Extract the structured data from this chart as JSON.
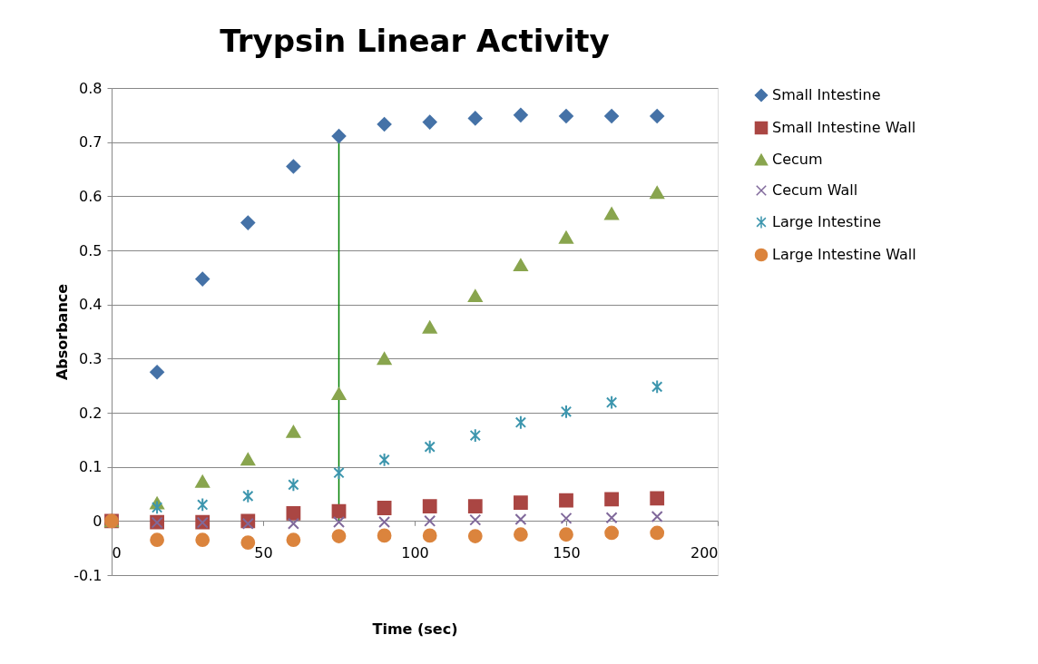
{
  "chart_data": {
    "type": "scatter",
    "title": "Trypsin Linear Activity",
    "xlabel": "Time (sec)",
    "ylabel": "Absorbance",
    "x": [
      0,
      15,
      30,
      45,
      60,
      75,
      90,
      105,
      120,
      135,
      150,
      165,
      180
    ],
    "xlim": [
      0,
      200
    ],
    "xticks": [
      0,
      50,
      100,
      150,
      200
    ],
    "ylim": [
      -0.1,
      0.8
    ],
    "yticks": [
      -0.1,
      0,
      0.1,
      0.2,
      0.3,
      0.4,
      0.5,
      0.6,
      0.7,
      0.8
    ],
    "grid": "y",
    "legend": "right",
    "series": [
      {
        "name": "Small Intestine",
        "color": "#4572a7",
        "marker": "diamond",
        "values": [
          null,
          0.275,
          0.447,
          0.551,
          0.655,
          0.711,
          0.733,
          0.737,
          0.744,
          0.75,
          0.748,
          0.748,
          0.748
        ]
      },
      {
        "name": "Small Intestine Wall",
        "color": "#aa4643",
        "marker": "square",
        "values": [
          0,
          -0.002,
          -0.002,
          0.0,
          0.014,
          0.018,
          0.024,
          0.027,
          0.027,
          0.034,
          0.038,
          0.04,
          0.042
        ]
      },
      {
        "name": "Cecum",
        "color": "#89a54e",
        "marker": "triangle",
        "values": [
          0,
          0.033,
          0.073,
          0.114,
          0.165,
          0.235,
          0.3,
          0.358,
          0.416,
          0.473,
          0.524,
          0.568,
          0.607
        ]
      },
      {
        "name": "Cecum Wall",
        "color": "#80699b",
        "marker": "cross",
        "values": [
          0,
          -0.003,
          -0.003,
          -0.005,
          -0.005,
          -0.002,
          -0.002,
          0.0,
          0.002,
          0.003,
          0.005,
          0.006,
          0.008
        ]
      },
      {
        "name": "Large Intestine",
        "color": "#3d96ae",
        "values": [
          null,
          0.025,
          0.03,
          0.046,
          0.067,
          0.089,
          0.113,
          0.137,
          0.158,
          0.182,
          0.202,
          0.219,
          0.248
        ]
      },
      {
        "name": "Large Intestine Wall",
        "color": "#db843d",
        "marker": "circle",
        "values": [
          0,
          -0.035,
          -0.035,
          -0.04,
          -0.035,
          -0.028,
          -0.027,
          -0.027,
          -0.028,
          -0.025,
          -0.025,
          -0.022,
          -0.022
        ]
      },
      {
        "type": "line",
        "color": "#008000",
        "x": [
          75,
          75
        ],
        "values": [
          0,
          0.711
        ]
      }
    ]
  }
}
